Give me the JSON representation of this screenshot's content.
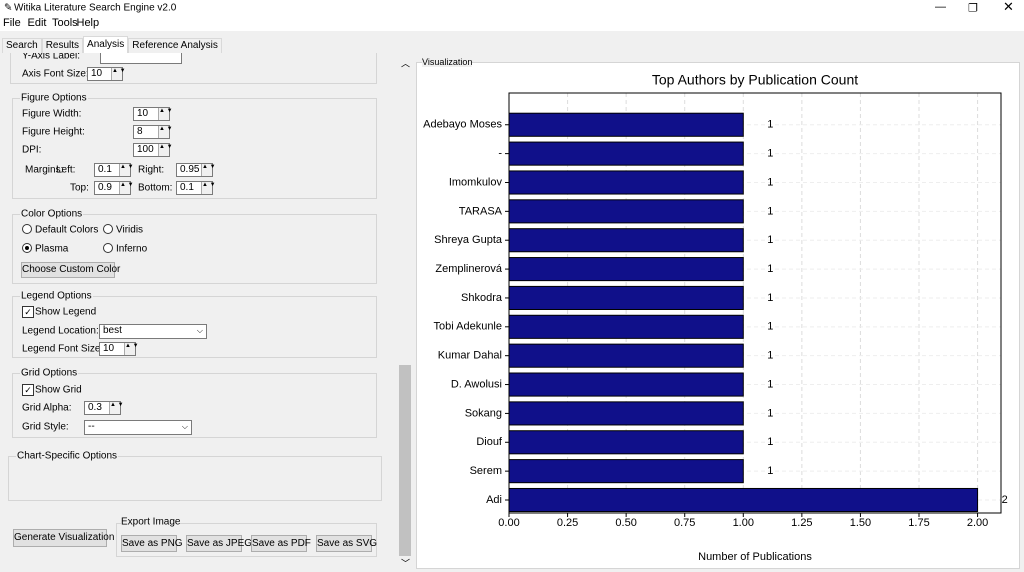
{
  "window": {
    "title": "Witika Literature Search Engine v2.0"
  },
  "menu": [
    "File",
    "Edit",
    "Tools",
    "Help"
  ],
  "tabs": {
    "items": [
      "Search",
      "Results",
      "Analysis",
      "Reference Analysis"
    ],
    "active": 2
  },
  "panel": {
    "y_axis_label": "Y-Axis Label:",
    "axis_font_size": {
      "label": "Axis Font Size:",
      "value": "10"
    },
    "figure_options": {
      "title": "Figure Options",
      "width": {
        "label": "Figure Width:",
        "value": "10"
      },
      "height": {
        "label": "Figure Height:",
        "value": "8"
      },
      "dpi": {
        "label": "DPI:",
        "value": "100"
      },
      "margins": {
        "label": "Margins:",
        "left": {
          "label": "Left:",
          "value": "0.1"
        },
        "right": {
          "label": "Right:",
          "value": "0.95"
        },
        "top": {
          "label": "Top:",
          "value": "0.9"
        },
        "bottom": {
          "label": "Bottom:",
          "value": "0.1"
        }
      }
    },
    "color_options": {
      "title": "Color Options",
      "choices": [
        "Default Colors",
        "Viridis",
        "Plasma",
        "Inferno"
      ],
      "selected": 2,
      "button": "Choose Custom Color"
    },
    "legend_options": {
      "title": "Legend Options",
      "show": {
        "label": "Show Legend",
        "checked": true
      },
      "location": {
        "label": "Legend Location:",
        "value": "best"
      },
      "font_size": {
        "label": "Legend Font Size:",
        "value": "10"
      }
    },
    "grid_options": {
      "title": "Grid Options",
      "show": {
        "label": "Show Grid",
        "checked": true
      },
      "alpha": {
        "label": "Grid Alpha:",
        "value": "0.3"
      },
      "style": {
        "label": "Grid Style:",
        "value": "--"
      }
    },
    "chart_specific": {
      "title": "Chart-Specific Options"
    },
    "generate_button": "Generate Visualization",
    "export": {
      "title": "Export Image",
      "buttons": [
        "Save as PNG",
        "Save as JPEG",
        "Save as PDF",
        "Save as SVG"
      ]
    }
  },
  "visualization_label": "Visualization",
  "chart_data": {
    "type": "barh",
    "title": "Top Authors by Publication Count",
    "xlabel": "Number of Publications",
    "categories": [
      "Adebayo Moses",
      "-",
      "Imomkulov",
      "TARASA",
      "Shreya Gupta",
      "Zemplinerová",
      "Shkodra",
      "Tobi Adekunle",
      "Kumar Dahal",
      "D. Awolusi",
      "Sokang",
      "Diouf",
      "Serem",
      "Adi"
    ],
    "values": [
      1,
      1,
      1,
      1,
      1,
      1,
      1,
      1,
      1,
      1,
      1,
      1,
      1,
      2
    ],
    "color": "#10108a",
    "xlim": [
      0,
      2.1
    ],
    "xticks": [
      {
        "value": 0,
        "label": "0.00"
      },
      {
        "value": 0.25,
        "label": "0.25"
      },
      {
        "value": 0.5,
        "label": "0.50"
      },
      {
        "value": 0.75,
        "label": "0.75"
      },
      {
        "value": 1,
        "label": "1.00"
      },
      {
        "value": 1.25,
        "label": "1.25"
      },
      {
        "value": 1.5,
        "label": "1.50"
      },
      {
        "value": 1.75,
        "label": "1.75"
      },
      {
        "value": 2,
        "label": "2.00"
      }
    ],
    "grid": true
  }
}
